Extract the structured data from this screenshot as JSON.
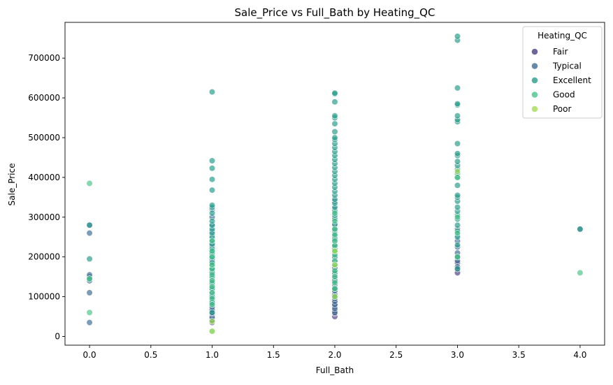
{
  "chart_data": {
    "type": "scatter",
    "title": "Sale_Price vs Full_Bath by Heating_QC",
    "xlabel": "Full_Bath",
    "ylabel": "Sale_Price",
    "xlim": [
      -0.2,
      4.2
    ],
    "ylim": [
      -22000,
      790000
    ],
    "x_ticks": [
      0.0,
      0.5,
      1.0,
      1.5,
      2.0,
      2.5,
      3.0,
      3.5,
      4.0
    ],
    "x_tick_labels": [
      "0.0",
      "0.5",
      "1.0",
      "1.5",
      "2.0",
      "2.5",
      "3.0",
      "3.5",
      "4.0"
    ],
    "y_ticks": [
      0,
      100000,
      200000,
      300000,
      400000,
      500000,
      600000,
      700000
    ],
    "y_tick_labels": [
      "0",
      "100000",
      "200000",
      "300000",
      "400000",
      "500000",
      "600000",
      "700000"
    ],
    "grid": false,
    "legend": {
      "title": "Heating_QC",
      "placement": "top-right"
    },
    "series": [
      {
        "name": "Fair",
        "color": "#4b3f82",
        "points": [
          [
            1,
            35000
          ],
          [
            1,
            42000
          ],
          [
            1,
            50000
          ],
          [
            1,
            55000
          ],
          [
            1,
            62000
          ],
          [
            1,
            70000
          ],
          [
            1,
            78000
          ],
          [
            1,
            85000
          ],
          [
            1,
            92000
          ],
          [
            1,
            100000
          ],
          [
            1,
            108000
          ],
          [
            1,
            115000
          ],
          [
            1,
            120000
          ],
          [
            1,
            128000
          ],
          [
            1,
            135000
          ],
          [
            1,
            140000
          ],
          [
            1,
            150000
          ],
          [
            1,
            160000
          ],
          [
            1,
            175000
          ],
          [
            1,
            190000
          ],
          [
            1,
            210000
          ],
          [
            1,
            230000
          ],
          [
            2,
            50000
          ],
          [
            2,
            58000
          ],
          [
            2,
            65000
          ],
          [
            2,
            75000
          ],
          [
            2,
            82000
          ],
          [
            2,
            90000
          ],
          [
            2,
            100000
          ],
          [
            2,
            112000
          ],
          [
            2,
            125000
          ],
          [
            2,
            140000
          ],
          [
            2,
            150000
          ],
          [
            2,
            160000
          ],
          [
            2,
            175000
          ],
          [
            3,
            160000
          ],
          [
            3,
            170000
          ],
          [
            3,
            185000
          ],
          [
            3,
            200000
          ]
        ]
      },
      {
        "name": "Typical",
        "color": "#3f6d93",
        "points": [
          [
            0,
            35000
          ],
          [
            0,
            110000
          ],
          [
            0,
            140000
          ],
          [
            0,
            150000
          ],
          [
            0,
            155000
          ],
          [
            0,
            260000
          ],
          [
            0,
            280000
          ],
          [
            1,
            40000
          ],
          [
            1,
            48000
          ],
          [
            1,
            58000
          ],
          [
            1,
            66000
          ],
          [
            1,
            74000
          ],
          [
            1,
            82000
          ],
          [
            1,
            90000
          ],
          [
            1,
            98000
          ],
          [
            1,
            105000
          ],
          [
            1,
            112000
          ],
          [
            1,
            118000
          ],
          [
            1,
            125000
          ],
          [
            1,
            130000
          ],
          [
            1,
            138000
          ],
          [
            1,
            145000
          ],
          [
            1,
            152000
          ],
          [
            1,
            158000
          ],
          [
            1,
            165000
          ],
          [
            1,
            172000
          ],
          [
            1,
            180000
          ],
          [
            1,
            188000
          ],
          [
            1,
            195000
          ],
          [
            1,
            205000
          ],
          [
            1,
            215000
          ],
          [
            1,
            225000
          ],
          [
            1,
            235000
          ],
          [
            1,
            245000
          ],
          [
            1,
            255000
          ],
          [
            1,
            265000
          ],
          [
            1,
            280000
          ],
          [
            1,
            300000
          ],
          [
            1,
            320000
          ],
          [
            2,
            60000
          ],
          [
            2,
            70000
          ],
          [
            2,
            80000
          ],
          [
            2,
            88000
          ],
          [
            2,
            95000
          ],
          [
            2,
            105000
          ],
          [
            2,
            115000
          ],
          [
            2,
            122000
          ],
          [
            2,
            130000
          ],
          [
            2,
            138000
          ],
          [
            2,
            145000
          ],
          [
            2,
            155000
          ],
          [
            2,
            165000
          ],
          [
            2,
            172000
          ],
          [
            2,
            180000
          ],
          [
            2,
            190000
          ],
          [
            2,
            200000
          ],
          [
            2,
            210000
          ],
          [
            2,
            220000
          ],
          [
            2,
            230000
          ],
          [
            2,
            240000
          ],
          [
            2,
            250000
          ],
          [
            2,
            265000
          ],
          [
            2,
            280000
          ],
          [
            2,
            300000
          ],
          [
            2,
            320000
          ],
          [
            2,
            340000
          ],
          [
            3,
            175000
          ],
          [
            3,
            190000
          ],
          [
            3,
            210000
          ],
          [
            3,
            225000
          ],
          [
            3,
            240000
          ],
          [
            3,
            255000
          ],
          [
            3,
            270000
          ],
          [
            4,
            270000
          ]
        ]
      },
      {
        "name": "Excellent",
        "color": "#2a9b8b",
        "points": [
          [
            0,
            145000
          ],
          [
            0,
            195000
          ],
          [
            0,
            280000
          ],
          [
            1,
            60000
          ],
          [
            1,
            85000
          ],
          [
            1,
            100000
          ],
          [
            1,
            120000
          ],
          [
            1,
            135000
          ],
          [
            1,
            150000
          ],
          [
            1,
            160000
          ],
          [
            1,
            170000
          ],
          [
            1,
            185000
          ],
          [
            1,
            200000
          ],
          [
            1,
            210000
          ],
          [
            1,
            220000
          ],
          [
            1,
            232000
          ],
          [
            1,
            242000
          ],
          [
            1,
            250000
          ],
          [
            1,
            260000
          ],
          [
            1,
            270000
          ],
          [
            1,
            280000
          ],
          [
            1,
            290000
          ],
          [
            1,
            310000
          ],
          [
            1,
            325000
          ],
          [
            1,
            330000
          ],
          [
            1,
            368000
          ],
          [
            1,
            395000
          ],
          [
            1,
            423000
          ],
          [
            1,
            442000
          ],
          [
            1,
            615000
          ],
          [
            2,
            100000
          ],
          [
            2,
            120000
          ],
          [
            2,
            140000
          ],
          [
            2,
            160000
          ],
          [
            2,
            180000
          ],
          [
            2,
            200000
          ],
          [
            2,
            215000
          ],
          [
            2,
            230000
          ],
          [
            2,
            245000
          ],
          [
            2,
            258000
          ],
          [
            2,
            270000
          ],
          [
            2,
            282000
          ],
          [
            2,
            295000
          ],
          [
            2,
            305000
          ],
          [
            2,
            315000
          ],
          [
            2,
            325000
          ],
          [
            2,
            335000
          ],
          [
            2,
            345000
          ],
          [
            2,
            355000
          ],
          [
            2,
            365000
          ],
          [
            2,
            375000
          ],
          [
            2,
            385000
          ],
          [
            2,
            395000
          ],
          [
            2,
            405000
          ],
          [
            2,
            415000
          ],
          [
            2,
            425000
          ],
          [
            2,
            435000
          ],
          [
            2,
            445000
          ],
          [
            2,
            455000
          ],
          [
            2,
            465000
          ],
          [
            2,
            475000
          ],
          [
            2,
            485000
          ],
          [
            2,
            495000
          ],
          [
            2,
            500000
          ],
          [
            2,
            515000
          ],
          [
            2,
            535000
          ],
          [
            2,
            550000
          ],
          [
            2,
            555000
          ],
          [
            2,
            590000
          ],
          [
            2,
            610000
          ],
          [
            2,
            612000
          ],
          [
            3,
            170000
          ],
          [
            3,
            200000
          ],
          [
            3,
            230000
          ],
          [
            3,
            250000
          ],
          [
            3,
            265000
          ],
          [
            3,
            280000
          ],
          [
            3,
            295000
          ],
          [
            3,
            305000
          ],
          [
            3,
            315000
          ],
          [
            3,
            325000
          ],
          [
            3,
            340000
          ],
          [
            3,
            350000
          ],
          [
            3,
            355000
          ],
          [
            3,
            380000
          ],
          [
            3,
            400000
          ],
          [
            3,
            410000
          ],
          [
            3,
            420000
          ],
          [
            3,
            430000
          ],
          [
            3,
            440000
          ],
          [
            3,
            455000
          ],
          [
            3,
            460000
          ],
          [
            3,
            485000
          ],
          [
            3,
            540000
          ],
          [
            3,
            545000
          ],
          [
            3,
            555000
          ],
          [
            3,
            582000
          ],
          [
            3,
            585000
          ],
          [
            3,
            625000
          ],
          [
            3,
            745000
          ],
          [
            3,
            755000
          ],
          [
            4,
            270000
          ]
        ]
      },
      {
        "name": "Good",
        "color": "#4cc38a",
        "points": [
          [
            0,
            60000
          ],
          [
            0,
            145000
          ],
          [
            0,
            385000
          ],
          [
            1,
            13000
          ],
          [
            1,
            80000
          ],
          [
            1,
            95000
          ],
          [
            1,
            110000
          ],
          [
            1,
            125000
          ],
          [
            1,
            140000
          ],
          [
            1,
            155000
          ],
          [
            1,
            170000
          ],
          [
            1,
            180000
          ],
          [
            1,
            200000
          ],
          [
            1,
            215000
          ],
          [
            1,
            240000
          ],
          [
            2,
            120000
          ],
          [
            2,
            135000
          ],
          [
            2,
            150000
          ],
          [
            2,
            165000
          ],
          [
            2,
            180000
          ],
          [
            2,
            190000
          ],
          [
            2,
            205000
          ],
          [
            2,
            215000
          ],
          [
            2,
            228000
          ],
          [
            2,
            240000
          ],
          [
            2,
            255000
          ],
          [
            2,
            270000
          ],
          [
            2,
            290000
          ],
          [
            2,
            310000
          ],
          [
            3,
            200000
          ],
          [
            3,
            260000
          ],
          [
            3,
            300000
          ],
          [
            3,
            400000
          ],
          [
            4,
            160000
          ]
        ]
      },
      {
        "name": "Poor",
        "color": "#a8db5d",
        "points": [
          [
            1,
            13000
          ],
          [
            1,
            38000
          ],
          [
            2,
            100000
          ],
          [
            2,
            180000
          ],
          [
            2,
            215000
          ],
          [
            3,
            415000
          ]
        ]
      }
    ]
  }
}
